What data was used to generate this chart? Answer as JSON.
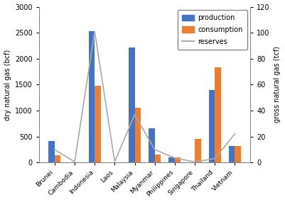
{
  "countries": [
    "Brunei",
    "Cambodia",
    "Indonesia",
    "Laos",
    "Malaysia",
    "Myanmar",
    "Philippines",
    "Singapore",
    "Thailand",
    "Vietnam"
  ],
  "production": [
    420,
    0,
    2530,
    0,
    2220,
    665,
    100,
    0,
    1390,
    325
  ],
  "consumption": [
    140,
    0,
    1480,
    0,
    1050,
    155,
    105,
    450,
    1830,
    320
  ],
  "reserves": [
    10,
    0.5,
    101,
    0.7,
    37,
    10,
    3.5,
    0.5,
    3,
    22
  ],
  "bar_color_production": "#4472C4",
  "bar_color_consumption": "#ED7D31",
  "line_color": "#aaaaaa",
  "ylabel_left": "dry natural gas (bcf)",
  "ylabel_right": "gross natural gas (tcf)",
  "ylim_left": [
    0,
    3000
  ],
  "ylim_right": [
    0,
    120
  ],
  "yticks_left": [
    0,
    500,
    1000,
    1500,
    2000,
    2500,
    3000
  ],
  "yticks_right": [
    0,
    20,
    40,
    60,
    80,
    100,
    120
  ],
  "legend_labels": [
    "production",
    "consumption",
    "reserves"
  ],
  "background_color": "#ffffff",
  "bar_width": 0.3,
  "figsize": [
    4.01,
    2.85
  ],
  "dpi": 100
}
